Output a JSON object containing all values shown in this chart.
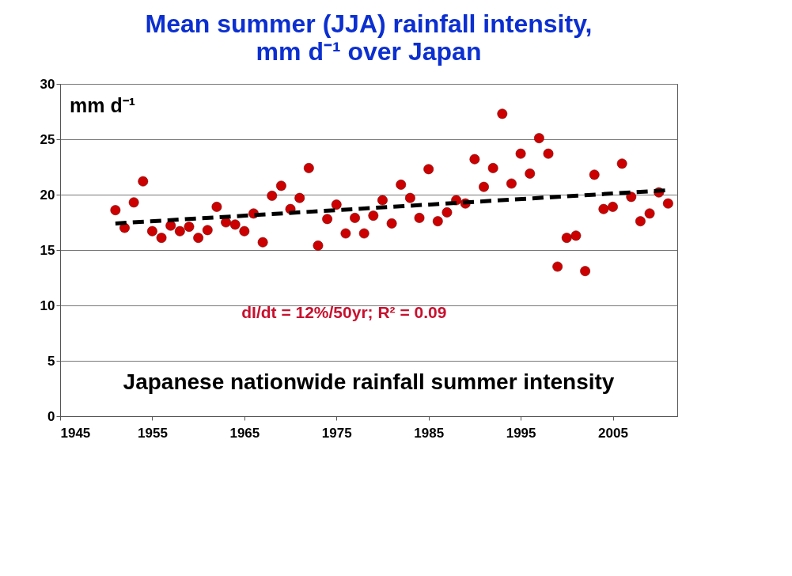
{
  "chart_data": {
    "type": "scatter",
    "title": "Mean summer (JJA) rainfall intensity,",
    "subtitle": "mm d⁻¹ over Japan",
    "annotations": [
      "mm d⁻¹",
      "dI/dt = 12%/50yr; R² = 0.09",
      "Japanese nationwide rainfall summer intensity"
    ],
    "xlim": [
      1945,
      2012
    ],
    "xticks": [
      1945,
      1955,
      1965,
      1975,
      1985,
      1995,
      2005
    ],
    "ylim": [
      0,
      30
    ],
    "yticks": [
      0,
      5,
      10,
      15,
      20,
      25,
      30
    ],
    "grid": "y",
    "series": [
      {
        "marker": "circle",
        "color": "#cc0000",
        "x": [
          1951,
          1952,
          1953,
          1954,
          1955,
          1956,
          1957,
          1958,
          1959,
          1960,
          1961,
          1962,
          1963,
          1964,
          1965,
          1966,
          1967,
          1968,
          1969,
          1970,
          1971,
          1972,
          1973,
          1974,
          1975,
          1976,
          1977,
          1978,
          1979,
          1980,
          1981,
          1982,
          1983,
          1984,
          1985,
          1986,
          1987,
          1988,
          1989,
          1990,
          1991,
          1992,
          1993,
          1994,
          1995,
          1996,
          1997,
          1998,
          1999,
          2000,
          2001,
          2002,
          2003,
          2004,
          2005,
          2006,
          2007,
          2008,
          2009,
          2010,
          2011
        ],
        "values": [
          18.6,
          17.0,
          19.3,
          21.2,
          16.7,
          16.1,
          17.2,
          16.7,
          17.1,
          16.1,
          16.8,
          18.9,
          17.5,
          17.3,
          16.7,
          18.3,
          15.7,
          19.9,
          20.8,
          18.7,
          19.7,
          22.4,
          15.4,
          17.8,
          19.1,
          16.5,
          17.9,
          16.5,
          18.1,
          19.5,
          17.4,
          20.9,
          19.7,
          17.9,
          22.3,
          17.6,
          18.4,
          19.5,
          19.2,
          23.2,
          20.7,
          22.4,
          27.3,
          21.0,
          23.7,
          21.9,
          25.1,
          23.7,
          13.5,
          16.1,
          16.3,
          13.1,
          21.8,
          18.7,
          18.9,
          22.8,
          19.8,
          17.6,
          18.3,
          20.2,
          19.2
        ]
      },
      {
        "type": "line",
        "color": "#000000",
        "line_style": "dashed",
        "x": [
          1951,
          2011
        ],
        "values": [
          17.4,
          20.4
        ]
      }
    ]
  }
}
